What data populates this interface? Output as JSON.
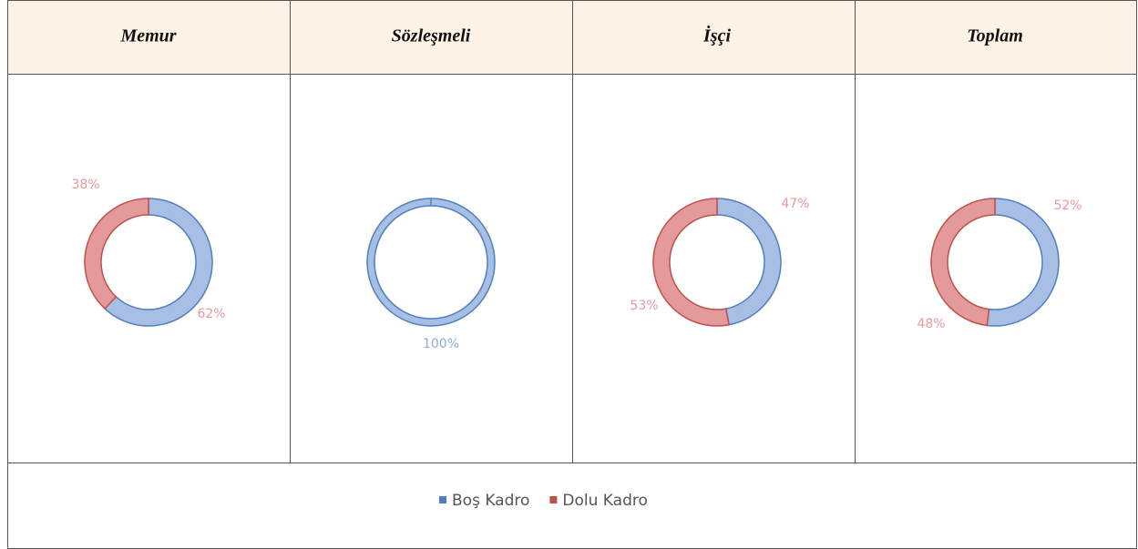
{
  "chart_data": [
    {
      "type": "pie",
      "title": "Memur",
      "values": [
        62,
        38
      ],
      "value_labels": [
        "62%",
        "38%"
      ]
    },
    {
      "type": "pie",
      "title": "Sözleşmeli",
      "values": [
        100,
        0
      ],
      "value_labels": [
        "100%",
        null
      ]
    },
    {
      "type": "pie",
      "title": "İşçi",
      "values": [
        47,
        53
      ],
      "value_labels": [
        "47%",
        "53%"
      ]
    },
    {
      "type": "pie",
      "title": "Toplam",
      "values": [
        52,
        48
      ],
      "value_labels": [
        "52%",
        "48%"
      ]
    }
  ],
  "legend": [
    {
      "name": "Boş Kadro",
      "color": "#4f7fc0"
    },
    {
      "name": "Dolu Kadro",
      "color": "#c0504d"
    }
  ]
}
